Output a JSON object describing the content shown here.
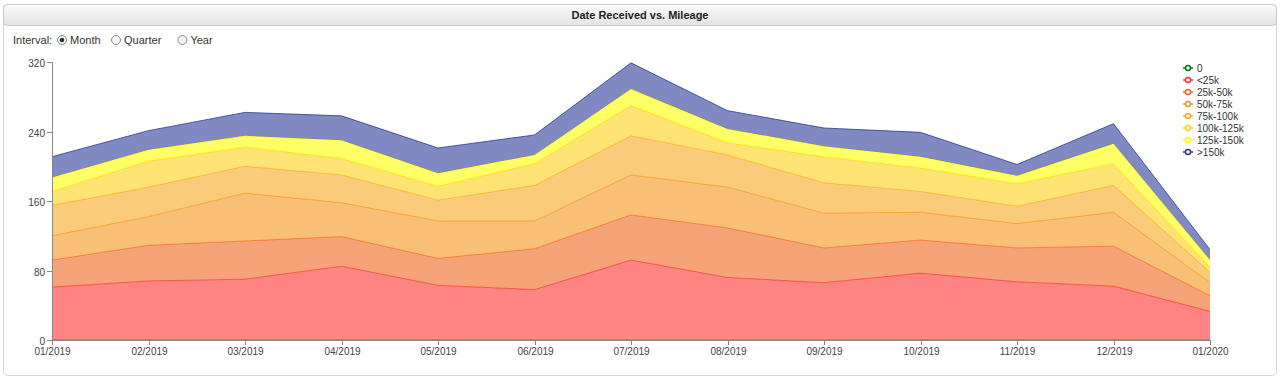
{
  "chart_data": {
    "type": "area",
    "title": "Date Received vs. Mileage",
    "controls": {
      "label": "Interval:",
      "options": [
        "Month",
        "Quarter",
        "Year"
      ],
      "selected": "Month"
    },
    "stacked": true,
    "grid": false,
    "legend": "top-right",
    "categories": [
      "01/2019",
      "02/2019",
      "03/2019",
      "04/2019",
      "05/2019",
      "06/2019",
      "07/2019",
      "08/2019",
      "09/2019",
      "10/2019",
      "11/2019",
      "12/2019",
      "01/2020"
    ],
    "ylim": [
      0,
      320
    ],
    "yticks": [
      0,
      80,
      160,
      240,
      320
    ],
    "series": [
      {
        "name": "0",
        "color": "#008000",
        "values": [
          0,
          0,
          0,
          0,
          0,
          0,
          0,
          0,
          0,
          0,
          0,
          0,
          0
        ]
      },
      {
        "name": "<25k",
        "color": "#ff3333",
        "values": [
          61,
          68,
          70,
          85,
          63,
          58,
          92,
          72,
          66,
          77,
          67,
          62,
          33
        ]
      },
      {
        "name": "25k-50k",
        "color": "#f26522",
        "values": [
          31,
          41,
          44,
          34,
          31,
          47,
          52,
          57,
          40,
          38,
          39,
          46,
          18
        ]
      },
      {
        "name": "50k-75k",
        "color": "#f7941d",
        "values": [
          28,
          33,
          55,
          39,
          43,
          32,
          46,
          47,
          40,
          32,
          28,
          39,
          15
        ]
      },
      {
        "name": "75k-100k",
        "color": "#f9a825",
        "values": [
          35,
          34,
          31,
          32,
          24,
          41,
          45,
          37,
          35,
          24,
          20,
          31,
          12
        ]
      },
      {
        "name": "100k-125k",
        "color": "#fcd116",
        "values": [
          16,
          30,
          22,
          19,
          16,
          25,
          35,
          14,
          30,
          27,
          26,
          25,
          6
        ]
      },
      {
        "name": "125k-150k",
        "color": "#ffff00",
        "values": [
          16,
          13,
          13,
          21,
          15,
          10,
          19,
          16,
          12,
          13,
          9,
          23,
          8
        ]
      },
      {
        "name": ">150k",
        "color": "#2b3a98",
        "values": [
          24,
          22,
          27,
          28,
          29,
          23,
          30,
          21,
          21,
          28,
          13,
          23,
          12
        ]
      }
    ]
  }
}
